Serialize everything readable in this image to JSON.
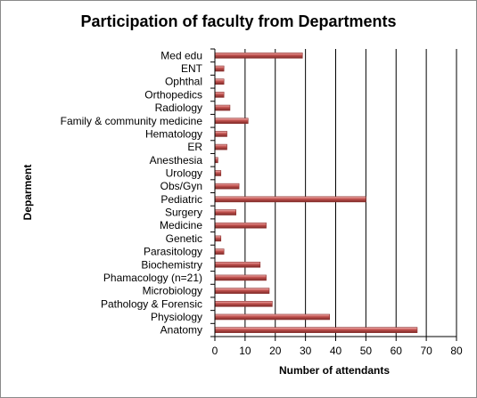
{
  "chart_data": {
    "type": "bar",
    "orientation": "horizontal",
    "title": "Participation of faculty from Departments",
    "xlabel": "Number of attendants",
    "ylabel": "Deparment",
    "xlim": [
      0,
      80
    ],
    "xticks": [
      0,
      10,
      20,
      30,
      40,
      50,
      60,
      70,
      80
    ],
    "grid": true,
    "legend": "none",
    "bar_color": "#c0504d",
    "categories": [
      "Med edu",
      "ENT",
      "Ophthal",
      "Orthopedics",
      "Radiology",
      "Family & community medicine",
      "Hematology",
      "ER",
      "Anesthesia",
      "Urology",
      "Obs/Gyn",
      "Pediatric",
      "Surgery",
      "Medicine",
      "Genetic",
      "Parasitology",
      "Biochemistry",
      "Phamacology (n=21)",
      "Microbiology",
      "Pathology & Forensic",
      "Physiology",
      "Anatomy"
    ],
    "values": [
      29,
      3,
      3,
      3,
      5,
      11,
      4,
      4,
      1,
      2,
      8,
      50,
      7,
      17,
      2,
      3,
      15,
      17,
      18,
      19,
      38,
      67
    ]
  }
}
